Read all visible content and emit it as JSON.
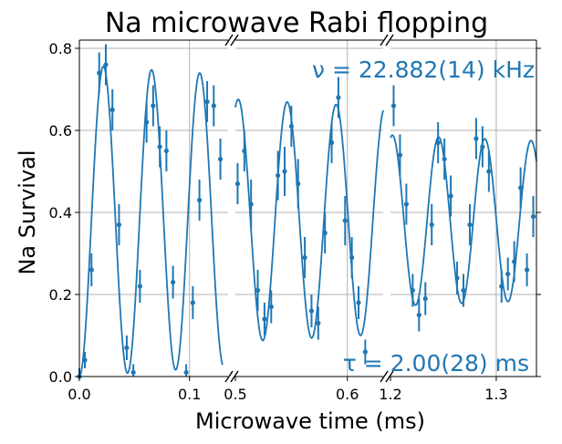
{
  "chart_data": {
    "type": "scatter",
    "title": "Na microwave Rabi flopping",
    "xlabel": "Microwave time (ms)",
    "ylabel": "Na Survival",
    "ylim": [
      0,
      0.82
    ],
    "yticks": [
      "0.0",
      "0.2",
      "0.4",
      "0.6",
      "0.8"
    ],
    "grid": true,
    "broken_x_axis": true,
    "series_color": "#1f77b4",
    "annotations": {
      "frequency": "ν = 22.882(14) kHz",
      "decay": "τ = 2.00(28) ms"
    },
    "panels": [
      {
        "xlim": [
          0.0,
          0.135
        ],
        "xticks": [
          {
            "value": 0.0,
            "label": "0.0"
          },
          {
            "value": 0.1,
            "label": "0.1"
          }
        ],
        "fit_range": [
          0.0,
          0.13
        ],
        "points": [
          {
            "x": 0.0,
            "y": 0.0,
            "err": 0.02
          },
          {
            "x": 0.005,
            "y": 0.04,
            "err": 0.02
          },
          {
            "x": 0.011,
            "y": 0.26,
            "err": 0.04
          },
          {
            "x": 0.018,
            "y": 0.74,
            "err": 0.05
          },
          {
            "x": 0.024,
            "y": 0.76,
            "err": 0.05
          },
          {
            "x": 0.03,
            "y": 0.65,
            "err": 0.05
          },
          {
            "x": 0.036,
            "y": 0.37,
            "err": 0.05
          },
          {
            "x": 0.043,
            "y": 0.07,
            "err": 0.03
          },
          {
            "x": 0.049,
            "y": 0.01,
            "err": 0.02
          },
          {
            "x": 0.055,
            "y": 0.22,
            "err": 0.04
          },
          {
            "x": 0.061,
            "y": 0.62,
            "err": 0.05
          },
          {
            "x": 0.067,
            "y": 0.66,
            "err": 0.05
          },
          {
            "x": 0.073,
            "y": 0.56,
            "err": 0.05
          },
          {
            "x": 0.079,
            "y": 0.55,
            "err": 0.05
          },
          {
            "x": 0.085,
            "y": 0.23,
            "err": 0.04
          },
          {
            "x": 0.097,
            "y": 0.01,
            "err": 0.02
          },
          {
            "x": 0.103,
            "y": 0.18,
            "err": 0.04
          },
          {
            "x": 0.109,
            "y": 0.43,
            "err": 0.05
          },
          {
            "x": 0.116,
            "y": 0.67,
            "err": 0.05
          },
          {
            "x": 0.122,
            "y": 0.66,
            "err": 0.05
          },
          {
            "x": 0.128,
            "y": 0.53,
            "err": 0.05
          }
        ]
      },
      {
        "xlim": [
          0.5,
          0.632
        ],
        "xticks": [
          {
            "value": 0.5,
            "label": "0.5"
          },
          {
            "value": 0.6,
            "label": "0.6"
          }
        ],
        "fit_range": [
          0.5,
          0.632
        ],
        "points": [
          {
            "x": 0.502,
            "y": 0.47,
            "err": 0.05
          },
          {
            "x": 0.508,
            "y": 0.55,
            "err": 0.05
          },
          {
            "x": 0.514,
            "y": 0.42,
            "err": 0.06
          },
          {
            "x": 0.52,
            "y": 0.21,
            "err": 0.05
          },
          {
            "x": 0.526,
            "y": 0.14,
            "err": 0.04
          },
          {
            "x": 0.532,
            "y": 0.17,
            "err": 0.04
          },
          {
            "x": 0.538,
            "y": 0.49,
            "err": 0.06
          },
          {
            "x": 0.544,
            "y": 0.5,
            "err": 0.06
          },
          {
            "x": 0.55,
            "y": 0.61,
            "err": 0.05
          },
          {
            "x": 0.556,
            "y": 0.47,
            "err": 0.06
          },
          {
            "x": 0.562,
            "y": 0.29,
            "err": 0.05
          },
          {
            "x": 0.568,
            "y": 0.16,
            "err": 0.04
          },
          {
            "x": 0.574,
            "y": 0.13,
            "err": 0.04
          },
          {
            "x": 0.58,
            "y": 0.35,
            "err": 0.05
          },
          {
            "x": 0.586,
            "y": 0.57,
            "err": 0.05
          },
          {
            "x": 0.592,
            "y": 0.68,
            "err": 0.05
          },
          {
            "x": 0.598,
            "y": 0.38,
            "err": 0.06
          },
          {
            "x": 0.604,
            "y": 0.29,
            "err": 0.05
          },
          {
            "x": 0.61,
            "y": 0.18,
            "err": 0.04
          },
          {
            "x": 0.616,
            "y": 0.06,
            "err": 0.03
          }
        ]
      },
      {
        "xlim": [
          1.2,
          1.338
        ],
        "xticks": [
          {
            "value": 1.2,
            "label": "1.2"
          },
          {
            "value": 1.3,
            "label": "1.3"
          }
        ],
        "fit_range": [
          1.2,
          1.338
        ],
        "points": [
          {
            "x": 1.203,
            "y": 0.66,
            "err": 0.05
          },
          {
            "x": 1.209,
            "y": 0.54,
            "err": 0.05
          },
          {
            "x": 1.215,
            "y": 0.42,
            "err": 0.05
          },
          {
            "x": 1.221,
            "y": 0.21,
            "err": 0.04
          },
          {
            "x": 1.227,
            "y": 0.15,
            "err": 0.04
          },
          {
            "x": 1.233,
            "y": 0.19,
            "err": 0.04
          },
          {
            "x": 1.239,
            "y": 0.37,
            "err": 0.05
          },
          {
            "x": 1.245,
            "y": 0.57,
            "err": 0.05
          },
          {
            "x": 1.251,
            "y": 0.53,
            "err": 0.05
          },
          {
            "x": 1.257,
            "y": 0.44,
            "err": 0.05
          },
          {
            "x": 1.263,
            "y": 0.24,
            "err": 0.04
          },
          {
            "x": 1.269,
            "y": 0.21,
            "err": 0.04
          },
          {
            "x": 1.275,
            "y": 0.37,
            "err": 0.05
          },
          {
            "x": 1.281,
            "y": 0.58,
            "err": 0.05
          },
          {
            "x": 1.287,
            "y": 0.56,
            "err": 0.05
          },
          {
            "x": 1.293,
            "y": 0.5,
            "err": 0.05
          },
          {
            "x": 1.305,
            "y": 0.22,
            "err": 0.04
          },
          {
            "x": 1.311,
            "y": 0.25,
            "err": 0.04
          },
          {
            "x": 1.317,
            "y": 0.28,
            "err": 0.05
          },
          {
            "x": 1.323,
            "y": 0.46,
            "err": 0.05
          },
          {
            "x": 1.329,
            "y": 0.26,
            "err": 0.04
          },
          {
            "x": 1.335,
            "y": 0.39,
            "err": 0.05
          }
        ]
      }
    ],
    "fit": {
      "frequency_kHz": 22.882,
      "tau_ms": 2.0,
      "mean": 0.38,
      "amplitude": 0.38,
      "phase_offset_ms": 0.0
    }
  }
}
